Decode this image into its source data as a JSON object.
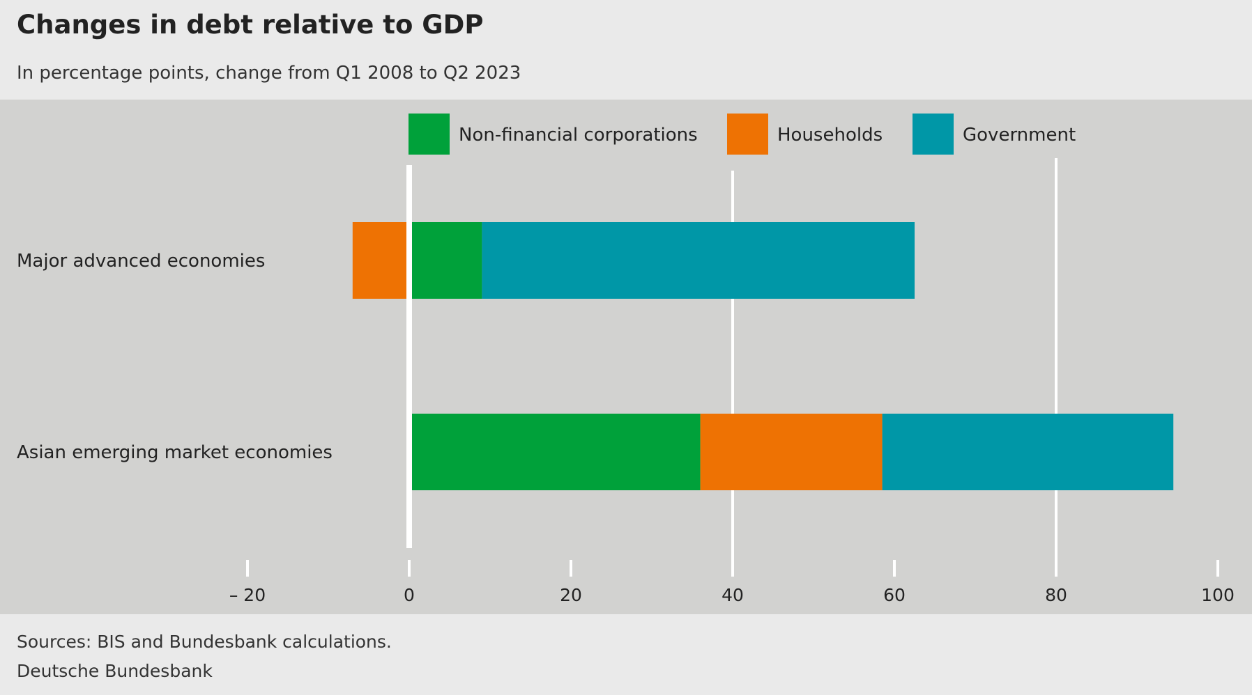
{
  "header": {
    "title": "Changes in debt relative to GDP",
    "subtitle": "In percentage points, change from Q1 2008 to Q2 2023"
  },
  "footer": {
    "source": "Sources: BIS and Bundesbank calculations.",
    "publisher": "Deutsche Bundesbank"
  },
  "colors": {
    "non_financial_corporations": "#00a13a",
    "households": "#ee7203",
    "government": "#0097a7",
    "panel_background": "#d2d2d0",
    "page_background": "#eaeaea",
    "gridline": "#ffffff"
  },
  "chart_data": {
    "type": "bar",
    "orientation": "horizontal",
    "stacked": true,
    "title": "Changes in debt relative to GDP",
    "subtitle": "In percentage points, change from Q1 2008 to Q2 2023",
    "categories": [
      "Major advanced economies",
      "Asian emerging market economies"
    ],
    "series": [
      {
        "name": "Non-financial corporations",
        "color": "#00a13a",
        "values": [
          9,
          36
        ]
      },
      {
        "name": "Households",
        "color": "#ee7203",
        "values": [
          -7,
          22.5
        ]
      },
      {
        "name": "Government",
        "color": "#0097a7",
        "values": [
          53.5,
          36
        ]
      }
    ],
    "xlim": [
      -20,
      100
    ],
    "x_ticks": [
      -20,
      0,
      20,
      40,
      60,
      80,
      100
    ],
    "x_tick_labels": [
      "– 20",
      "0",
      "20",
      "40",
      "60",
      "80",
      "100"
    ],
    "gridlines_at": [
      0,
      40,
      80
    ],
    "grid": true,
    "legend_placement": "top"
  }
}
